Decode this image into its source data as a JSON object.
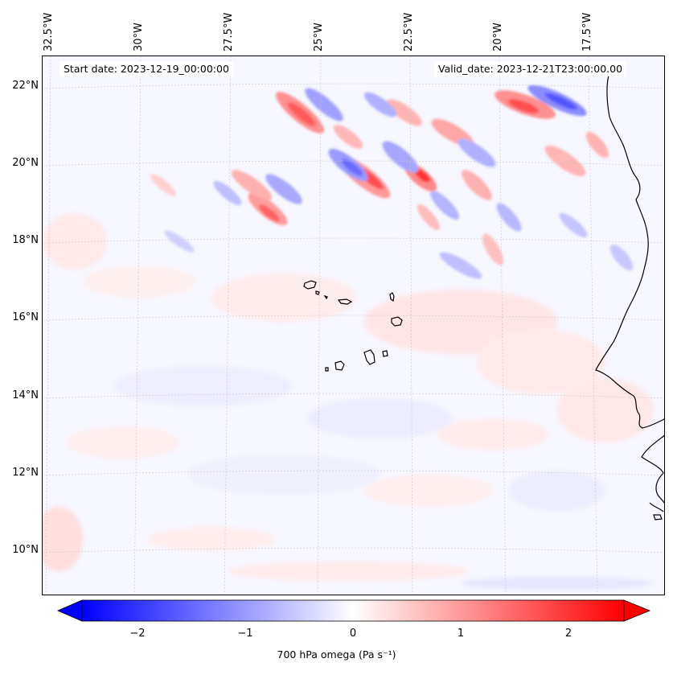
{
  "map": {
    "start_date": "Start date: 2023-12-19_00:00:00",
    "valid_date": "Valid_date: 2023-12-21T23:00:00.00",
    "lon_labels": [
      "32.5°W",
      "30°W",
      "27.5°W",
      "25°W",
      "22.5°W",
      "20°W",
      "17.5°W"
    ],
    "lat_labels": [
      "22°N",
      "20°N",
      "18°N",
      "16°N",
      "14°N",
      "12°N",
      "10°N"
    ],
    "projection": "lambert-conformal",
    "extent": {
      "lon_min": -32.5,
      "lon_max": -16.0,
      "lat_min": 9.0,
      "lat_max": 22.7
    },
    "gridlines": true,
    "features": [
      "cape-verde-islands",
      "west-africa-coastline"
    ]
  },
  "colorbar": {
    "label": "700 hPa omega (Pa s⁻¹)",
    "ticks": [
      "−2",
      "−1",
      "0",
      "1",
      "2"
    ],
    "tick_values": [
      -2,
      -1,
      0,
      1,
      2
    ],
    "range": [
      -2.6,
      2.6
    ],
    "cmap": "bwr",
    "extend": "both",
    "colors": {
      "negative": "#0000ff",
      "zero": "#ffffff",
      "positive": "#ff0000"
    }
  }
}
